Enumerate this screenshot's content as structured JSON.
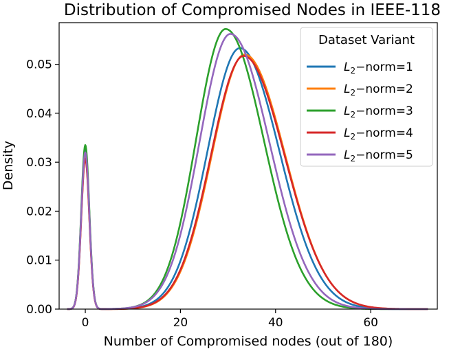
{
  "chart_data": {
    "type": "line",
    "title": "Distribution of Compromised Nodes in IEEE-118",
    "xlabel": "Number of Compromised nodes (out of 180)",
    "ylabel": "Density",
    "xlim": [
      -5.5,
      74
    ],
    "ylim": [
      0,
      0.0585
    ],
    "xticks": [
      0,
      20,
      40,
      60
    ],
    "yticks": [
      0.0,
      0.01,
      0.02,
      0.03,
      0.04,
      0.05
    ],
    "ytick_labels": [
      "0.00",
      "0.01",
      "0.02",
      "0.03",
      "0.04",
      "0.05"
    ],
    "grid": false,
    "legend": {
      "title": "Dataset Variant",
      "placement": "top-right"
    },
    "series": [
      {
        "label_main": "L",
        "label_sub": "2",
        "label_rest": "−norm=1",
        "color": "#1f77b4",
        "spike_peak": 0.0325,
        "spike_sd": 0.85,
        "main_mu": 32.5,
        "main_sd_left": 6.8,
        "main_sd_right": 8.3,
        "main_peak": 0.0533,
        "x_start": -3.8,
        "x_end": 72
      },
      {
        "label_main": "L",
        "label_sub": "2",
        "label_rest": "−norm=2",
        "color": "#ff7f0e",
        "spike_peak": 0.031,
        "spike_sd": 0.85,
        "main_mu": 33.5,
        "main_sd_left": 6.9,
        "main_sd_right": 8.5,
        "main_peak": 0.052,
        "x_start": -3.8,
        "x_end": 72
      },
      {
        "label_main": "L",
        "label_sub": "2",
        "label_rest": "−norm=3",
        "color": "#2ca02c",
        "spike_peak": 0.0335,
        "spike_sd": 0.85,
        "main_mu": 29.5,
        "main_sd_left": 6.2,
        "main_sd_right": 8.0,
        "main_peak": 0.0572,
        "x_start": -3.8,
        "x_end": 72
      },
      {
        "label_main": "L",
        "label_sub": "2",
        "label_rest": "−norm=4",
        "color": "#d62728",
        "spike_peak": 0.0307,
        "spike_sd": 0.85,
        "main_mu": 33.3,
        "main_sd_left": 6.9,
        "main_sd_right": 8.6,
        "main_peak": 0.0517,
        "x_start": -3.8,
        "x_end": 72
      },
      {
        "label_main": "L",
        "label_sub": "2",
        "label_rest": "−norm=5",
        "color": "#9467bd",
        "spike_peak": 0.032,
        "spike_sd": 0.85,
        "main_mu": 30.5,
        "main_sd_left": 6.5,
        "main_sd_right": 8.2,
        "main_peak": 0.0562,
        "x_start": -3.8,
        "x_end": 72
      }
    ]
  }
}
